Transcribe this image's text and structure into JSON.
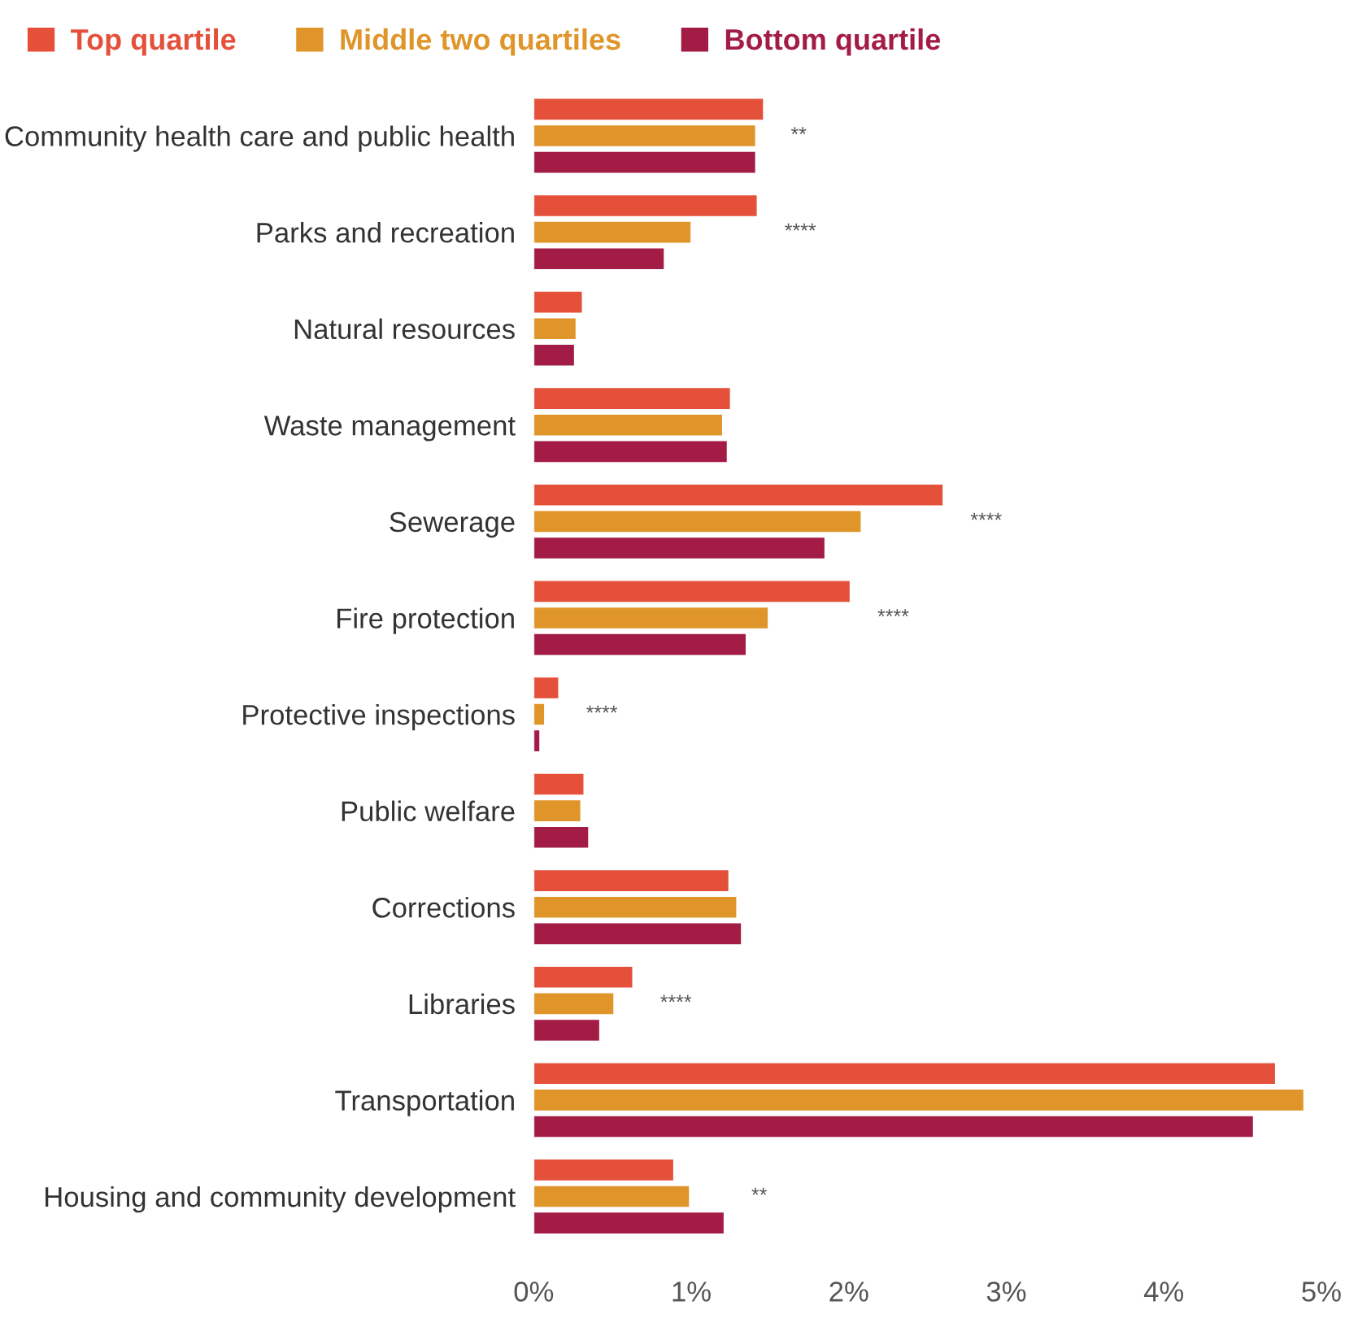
{
  "chart_data": {
    "type": "bar",
    "orientation": "horizontal",
    "categories": [
      "Community health care and public health",
      "Parks and recreation",
      "Natural resources",
      "Waste management",
      "Sewerage",
      "Fire protection",
      "Protective inspections",
      "Public welfare",
      "Corrections",
      "Libraries",
      "Transportation",
      "Housing and community development"
    ],
    "series": [
      {
        "name": "Top quartile",
        "color": "#e4503a",
        "values": [
          1.46,
          1.42,
          0.31,
          1.25,
          2.6,
          2.01,
          0.16,
          0.32,
          1.24,
          0.63,
          4.71,
          0.89
        ]
      },
      {
        "name": "Middle two quartiles",
        "color": "#e0952a",
        "values": [
          1.41,
          1.0,
          0.27,
          1.2,
          2.08,
          1.49,
          0.07,
          0.3,
          1.29,
          0.51,
          4.89,
          0.99
        ]
      },
      {
        "name": "Bottom quartile",
        "color": "#a31c45",
        "values": [
          1.41,
          0.83,
          0.26,
          1.23,
          1.85,
          1.35,
          0.04,
          0.35,
          1.32,
          0.42,
          4.57,
          1.21
        ]
      }
    ],
    "xlim": [
      0,
      5
    ],
    "xticks": [
      {
        "value": 0,
        "label": "0%"
      },
      {
        "value": 1,
        "label": "1%"
      },
      {
        "value": 2,
        "label": "2%"
      },
      {
        "value": 3,
        "label": "3%"
      },
      {
        "value": 4,
        "label": "4%"
      },
      {
        "value": 5,
        "label": "5%"
      }
    ],
    "annotations": [
      "**",
      "****",
      null,
      null,
      "****",
      "****",
      "****",
      null,
      null,
      "****",
      null,
      "**"
    ],
    "legend": "top left",
    "grid": false
  }
}
